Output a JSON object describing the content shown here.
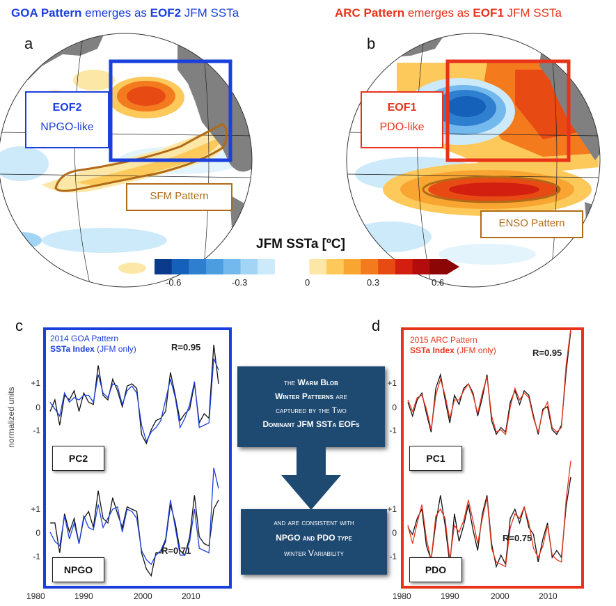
{
  "header": {
    "left": {
      "bold1": "GOA Pattern",
      "t1": " emerges as ",
      "bold2": "EOF2",
      "t2": " JFM SSTa"
    },
    "right": {
      "bold1": "ARC Pattern",
      "t1": " emerges as ",
      "bold2": "EOF1",
      "t2": " JFM SSTa"
    }
  },
  "panel_letters": {
    "a": "a",
    "b": "b",
    "c": "c",
    "d": "d"
  },
  "map_a": {
    "eof_title": "EOF2",
    "eof_sub": "NPGO-like",
    "pattern_label": "SFM Pattern",
    "box_color": "#1a3fdc"
  },
  "map_b": {
    "eof_title": "EOF1",
    "eof_sub": "PDO-like",
    "pattern_label": "ENSO Pattern",
    "box_color": "#e8321a"
  },
  "colorbar": {
    "title": "JFM SSTa [ºC]",
    "ticks": [
      "-0.6",
      "-0.3",
      "0",
      "0.3",
      "0.6"
    ],
    "colors": [
      "#0a3a8c",
      "#1560b8",
      "#2f7fd0",
      "#4c9de0",
      "#74b9ee",
      "#a2d4f5",
      "#cdeafb",
      "#ffffff",
      "#ffffff",
      "#fde7a6",
      "#fcc95a",
      "#f9a532",
      "#f47a1e",
      "#e84a14",
      "#d21f10",
      "#b30c0c",
      "#8c0606"
    ]
  },
  "panel_c": {
    "label_line1": "2014 GOA Pattern",
    "label_line2_bold": "SSTa Index",
    "label_line2_rest": " (JFM only)",
    "r_top": "R=0.95",
    "r_bottom": "R=0.71",
    "pc_label": "PC2",
    "index_label": "NPGO",
    "accent": "#1a3fdc"
  },
  "panel_d": {
    "label_line1": "2015 ARC Pattern",
    "label_line2_bold": "SSTa Index",
    "label_line2_rest": " (JFM only)",
    "r_top": "R=0.95",
    "r_bottom": "R=0.75",
    "pc_label": "PC1",
    "index_label": "PDO",
    "accent": "#e8321a"
  },
  "yaxis": {
    "title": "normalized units",
    "ticks": [
      "+1",
      "0",
      "-1"
    ]
  },
  "xaxis": {
    "ticks": [
      "1980",
      "1990",
      "2000",
      "2010"
    ]
  },
  "center_box_top": {
    "l1": "the ",
    "l1b": "Warm Blob",
    "l2b": "Winter Patterns",
    "l2": " are",
    "l3": "captured by the Two",
    "l4b": "Dominant JFM SSTa EOFs"
  },
  "center_box_bottom": {
    "l1": "and are consistent with",
    "l2b": "NPGO and PDO type",
    "l3": "winter Variability"
  },
  "series": {
    "years": [
      1980,
      1981,
      1982,
      1983,
      1984,
      1985,
      1986,
      1987,
      1988,
      1989,
      1990,
      1991,
      1992,
      1993,
      1994,
      1995,
      1996,
      1997,
      1998,
      1999,
      2000,
      2001,
      2002,
      2003,
      2004,
      2005,
      2006,
      2007,
      2008,
      2009,
      2010,
      2011,
      2012,
      2013,
      2014,
      2015
    ],
    "c_top_black": [
      -0.2,
      0.3,
      -0.8,
      0.5,
      0.3,
      0.7,
      -0.2,
      0.6,
      0.2,
      0.1,
      1.8,
      0.5,
      0.3,
      1.2,
      0.7,
      0.0,
      0.9,
      1.0,
      0.8,
      -1.2,
      -1.6,
      -1.0,
      -0.6,
      -0.5,
      -0.2,
      1.5,
      0.5,
      -0.6,
      -0.3,
      -0.1,
      1.0,
      -0.7,
      -0.3,
      -0.5,
      2.7,
      1.0
    ],
    "c_top_color": [
      0.2,
      -0.1,
      -0.4,
      0.6,
      0.2,
      0.4,
      0.3,
      0.5,
      0.5,
      0.2,
      1.4,
      0.6,
      0.4,
      1.0,
      0.9,
      0.1,
      0.7,
      0.9,
      0.6,
      -0.8,
      -1.5,
      -1.1,
      -0.9,
      -0.6,
      0.3,
      1.2,
      0.4,
      -0.9,
      -0.5,
      0.1,
      1.1,
      -0.9,
      -0.8,
      -0.7,
      2.1,
      1.6
    ],
    "c_bot_black": [
      0.4,
      0.4,
      -0.9,
      0.8,
      0.0,
      0.6,
      -0.5,
      0.6,
      0.9,
      0.2,
      1.8,
      0.6,
      0.4,
      1.5,
      0.8,
      0.2,
      1.1,
      1.0,
      0.9,
      -0.9,
      -1.6,
      -1.9,
      -0.9,
      -0.9,
      -0.4,
      1.2,
      0.4,
      -0.8,
      -1.0,
      -0.2,
      1.6,
      -0.2,
      -0.5,
      -0.6,
      1.0,
      1.4
    ],
    "c_bot_color": [
      0.0,
      -0.4,
      -0.6,
      0.7,
      -0.3,
      0.4,
      -0.5,
      0.7,
      0.2,
      0.1,
      1.2,
      0.2,
      0.6,
      1.0,
      1.1,
      0.0,
      1.0,
      0.9,
      0.6,
      -0.8,
      -1.2,
      -1.4,
      -1.0,
      -0.8,
      -0.3,
      1.4,
      0.2,
      -1.0,
      -1.0,
      -0.4,
      1.0,
      -0.7,
      -0.8,
      -0.9,
      2.8,
      1.9
    ],
    "d_top_black": [
      0.2,
      -0.4,
      0.3,
      0.6,
      -0.3,
      -1.1,
      0.8,
      1.4,
      0.3,
      -0.7,
      0.5,
      0.1,
      0.8,
      1.0,
      0.6,
      -0.4,
      0.4,
      1.4,
      -0.6,
      -1.2,
      -0.9,
      -1.1,
      0.2,
      0.7,
      0.1,
      0.7,
      0.5,
      -0.4,
      -1.2,
      -0.1,
      0.0,
      -1.0,
      -1.2,
      -0.8,
      1.5,
      3.3
    ],
    "d_top_color": [
      0.3,
      -0.2,
      0.4,
      0.5,
      -0.1,
      -1.0,
      0.5,
      1.2,
      0.5,
      -0.5,
      0.3,
      0.3,
      0.7,
      1.0,
      0.5,
      -0.3,
      0.6,
      1.3,
      -0.4,
      -1.1,
      -1.0,
      -1.2,
      0.0,
      0.8,
      0.3,
      0.6,
      0.4,
      -0.5,
      -1.1,
      -0.2,
      0.2,
      -0.9,
      -1.1,
      -0.9,
      1.8,
      3.4
    ],
    "d_bot_black": [
      0.2,
      -0.1,
      0.6,
      1.0,
      -0.6,
      -1.2,
      0.4,
      1.6,
      0.3,
      -1.4,
      0.8,
      -0.4,
      0.3,
      1.2,
      0.1,
      -0.8,
      0.8,
      1.6,
      -0.5,
      -1.5,
      -1.0,
      -1.4,
      0.6,
      1.0,
      0.4,
      1.1,
      0.2,
      -0.1,
      -1.3,
      -0.3,
      0.4,
      -1.1,
      -0.8,
      -1.1,
      1.1,
      2.4
    ],
    "d_bot_color": [
      0.3,
      -0.5,
      0.4,
      1.2,
      -0.3,
      -1.2,
      0.7,
      1.0,
      0.6,
      -1.2,
      0.3,
      0.0,
      0.5,
      1.4,
      0.5,
      -0.5,
      0.6,
      1.5,
      -0.7,
      -1.3,
      -1.4,
      -1.5,
      0.2,
      0.8,
      0.6,
      1.1,
      0.4,
      -0.7,
      -1.1,
      -0.6,
      0.3,
      -1.0,
      -1.2,
      -1.3,
      1.4,
      3.1
    ]
  }
}
